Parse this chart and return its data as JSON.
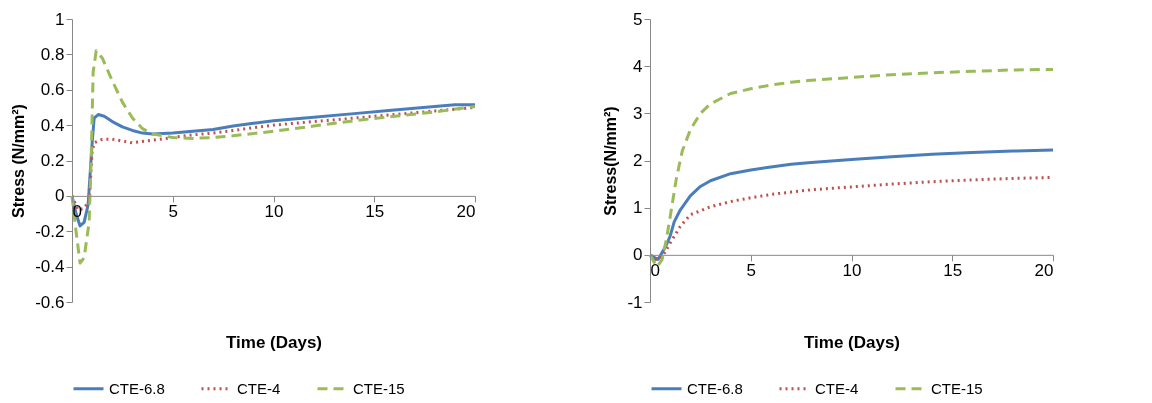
{
  "chart_data": [
    {
      "type": "line",
      "xlabel": "Time (Days)",
      "ylabel": "Stress (N/mm²)",
      "xlim": [
        0,
        20
      ],
      "xticks": [
        0,
        5,
        10,
        15,
        20
      ],
      "ylim": [
        -0.6,
        1
      ],
      "yticks": [
        -0.6,
        -0.4,
        -0.2,
        0,
        0.2,
        0.4,
        0.6,
        0.8,
        1
      ],
      "grid": false,
      "legend": "bottom",
      "marker": "none",
      "series": [
        {
          "name": "CTE-6.8",
          "color": "#4a7ebb",
          "line_style": "solid",
          "x": [
            0,
            0.2,
            0.4,
            0.6,
            0.8,
            1.0,
            1.1,
            1.3,
            1.6,
            2,
            2.5,
            3,
            3.5,
            4,
            5,
            6,
            7,
            8,
            9,
            10,
            12,
            14,
            16,
            18,
            19,
            20
          ],
          "values": [
            0,
            -0.1,
            -0.17,
            -0.15,
            -0.05,
            0.3,
            0.44,
            0.46,
            0.45,
            0.42,
            0.39,
            0.37,
            0.355,
            0.35,
            0.355,
            0.365,
            0.375,
            0.395,
            0.41,
            0.425,
            0.445,
            0.465,
            0.485,
            0.505,
            0.515,
            0.515
          ]
        },
        {
          "name": "CTE-4",
          "color": "#c0504d",
          "line_style": "dotted",
          "x": [
            0,
            0.3,
            0.6,
            0.85,
            1.0,
            1.1,
            1.5,
            2,
            2.5,
            3,
            4,
            5,
            6,
            7,
            8,
            9,
            10,
            12,
            14,
            16,
            18,
            20
          ],
          "values": [
            0,
            -0.08,
            -0.07,
            -0.03,
            0.25,
            0.3,
            0.32,
            0.32,
            0.31,
            0.3,
            0.315,
            0.33,
            0.345,
            0.355,
            0.37,
            0.385,
            0.4,
            0.42,
            0.44,
            0.46,
            0.48,
            0.5
          ]
        },
        {
          "name": "CTE-15",
          "color": "#9bbb59",
          "line_style": "dashed",
          "x": [
            0,
            0.2,
            0.4,
            0.6,
            0.85,
            0.95,
            1.05,
            1.2,
            1.5,
            2,
            2.5,
            3,
            3.5,
            4,
            5,
            6,
            7,
            8,
            10,
            12,
            14,
            16,
            18,
            20
          ],
          "values": [
            0,
            -0.2,
            -0.38,
            -0.35,
            -0.15,
            0.2,
            0.7,
            0.82,
            0.78,
            0.65,
            0.53,
            0.44,
            0.38,
            0.35,
            0.33,
            0.325,
            0.33,
            0.34,
            0.365,
            0.395,
            0.425,
            0.45,
            0.475,
            0.505
          ]
        }
      ]
    },
    {
      "type": "line",
      "xlabel": "Time (Days)",
      "ylabel": "Stress(N/mm²)",
      "xlim": [
        0,
        20
      ],
      "xticks": [
        0,
        5,
        10,
        15,
        20
      ],
      "ylim": [
        -1,
        5
      ],
      "yticks": [
        -1,
        0,
        1,
        2,
        3,
        4,
        5
      ],
      "grid": false,
      "legend": "bottom",
      "marker": "none",
      "series": [
        {
          "name": "CTE-6.8",
          "color": "#4a7ebb",
          "line_style": "solid",
          "x": [
            0,
            0.2,
            0.4,
            0.6,
            0.8,
            1.0,
            1.2,
            1.5,
            2,
            2.5,
            3,
            4,
            5,
            6,
            7,
            8,
            10,
            12,
            14,
            16,
            18,
            20
          ],
          "values": [
            0,
            -0.05,
            -0.1,
            0.05,
            0.2,
            0.4,
            0.7,
            0.95,
            1.25,
            1.45,
            1.57,
            1.72,
            1.8,
            1.86,
            1.92,
            1.96,
            2.02,
            2.08,
            2.13,
            2.17,
            2.2,
            2.22
          ]
        },
        {
          "name": "CTE-4",
          "color": "#c0504d",
          "line_style": "dotted",
          "x": [
            0,
            0.3,
            0.6,
            1,
            1.5,
            2,
            3,
            4,
            5,
            6,
            7,
            8,
            10,
            12,
            14,
            16,
            18,
            20
          ],
          "values": [
            0,
            -0.1,
            -0.05,
            0.25,
            0.6,
            0.85,
            1.02,
            1.13,
            1.21,
            1.28,
            1.33,
            1.38,
            1.44,
            1.5,
            1.55,
            1.59,
            1.62,
            1.64
          ]
        },
        {
          "name": "CTE-15",
          "color": "#9bbb59",
          "line_style": "dashed",
          "x": [
            0,
            0.2,
            0.35,
            0.6,
            0.8,
            1,
            1.3,
            1.6,
            2,
            2.5,
            3,
            4,
            5,
            6,
            7,
            8,
            10,
            12,
            14,
            16,
            18,
            20
          ],
          "values": [
            0,
            -0.15,
            -0.25,
            -0.1,
            0.3,
            0.8,
            1.6,
            2.2,
            2.65,
            3.0,
            3.2,
            3.42,
            3.52,
            3.6,
            3.66,
            3.7,
            3.76,
            3.82,
            3.86,
            3.89,
            3.92,
            3.93
          ]
        }
      ]
    }
  ]
}
